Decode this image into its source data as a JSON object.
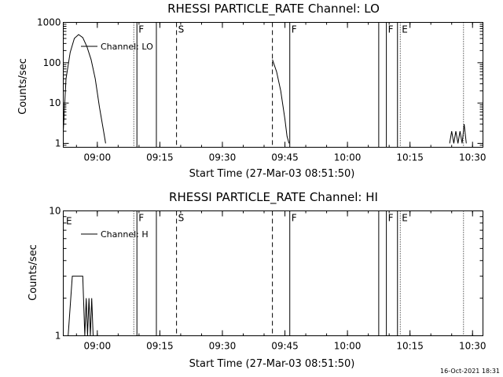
{
  "figure": {
    "timestamp": "16-Oct-2021 18:31"
  },
  "chart_data": [
    {
      "type": "line",
      "title": "RHESSI PARTICLE_RATE Channel: LO",
      "xlabel": "Start Time (27-Mar-03 08:51:50)",
      "ylabel": "Counts/sec",
      "y_scale": "log",
      "ylim": [
        0.8,
        1000
      ],
      "y_ticks": [
        1,
        10,
        100,
        1000
      ],
      "y_tick_labels": [
        "1",
        "10",
        "100",
        "1000"
      ],
      "xlim": [
        "08:51:50",
        "10:32:30"
      ],
      "x_ticks": [
        "09:00",
        "09:15",
        "09:30",
        "09:45",
        "10:00",
        "10:15",
        "10:30"
      ],
      "legend": {
        "position": "top-left",
        "entries": [
          "Channel: LO"
        ]
      },
      "series": [
        {
          "name": "Channel: LO",
          "segments": [
            {
              "x": [
                "08:51:50",
                "08:52:30",
                "08:53:30",
                "08:54:30",
                "08:55:30",
                "08:56:30",
                "08:57:30",
                "08:58:30",
                "08:59:30",
                "09:00:30",
                "09:01:30",
                "09:02:00"
              ],
              "y": [
                2,
                40,
                180,
                400,
                500,
                420,
                250,
                120,
                40,
                8,
                2,
                1
              ]
            },
            {
              "x": [
                "09:42:00",
                "09:43:00",
                "09:44:00",
                "09:45:00",
                "09:45:30",
                "09:46:00"
              ],
              "y": [
                120,
                60,
                20,
                4,
                1.5,
                1
              ]
            },
            {
              "x": [
                "10:24:30",
                "10:25:00",
                "10:25:30",
                "10:26:00",
                "10:26:30",
                "10:27:00",
                "10:27:30",
                "10:28:00",
                "10:28:30"
              ],
              "y": [
                1,
                2,
                1,
                2,
                1,
                2,
                1,
                3,
                1
              ]
            }
          ]
        }
      ],
      "markers": [
        {
          "time": "09:08:45",
          "style": "dotted",
          "label": ""
        },
        {
          "time": "09:09:30",
          "style": "solid",
          "label": "F"
        },
        {
          "time": "09:14:10",
          "style": "solid",
          "label": ""
        },
        {
          "time": "09:19:00",
          "style": "dashed",
          "label": "S"
        },
        {
          "time": "09:42:00",
          "style": "dashed",
          "label": ""
        },
        {
          "time": "09:46:10",
          "style": "solid",
          "label": "F"
        },
        {
          "time": "10:07:30",
          "style": "solid",
          "label": ""
        },
        {
          "time": "10:09:20",
          "style": "solid",
          "label": "F"
        },
        {
          "time": "10:12:00",
          "style": "solid",
          "label": ""
        },
        {
          "time": "10:12:40",
          "style": "dotted",
          "label": "E"
        },
        {
          "time": "10:27:50",
          "style": "dotted",
          "label": ""
        }
      ],
      "extra_labels": []
    },
    {
      "type": "line",
      "title": "RHESSI PARTICLE_RATE Channel: HI",
      "xlabel": "Start Time (27-Mar-03 08:51:50)",
      "ylabel": "Counts/sec",
      "y_scale": "log",
      "ylim": [
        1,
        10
      ],
      "y_ticks": [
        1,
        10
      ],
      "y_tick_labels": [
        "1",
        "10"
      ],
      "xlim": [
        "08:51:50",
        "10:32:30"
      ],
      "x_ticks": [
        "09:00",
        "09:15",
        "09:30",
        "09:45",
        "10:00",
        "10:15",
        "10:30"
      ],
      "legend": {
        "position": "top-left",
        "entries": [
          "Channel: H"
        ]
      },
      "series": [
        {
          "name": "Channel: H",
          "segments": [
            {
              "x": [
                "08:53:00",
                "08:54:00",
                "08:55:00",
                "08:56:30",
                "08:57:00",
                "08:57:20",
                "08:57:40",
                "08:58:00",
                "08:58:20",
                "08:58:40",
                "08:59:00"
              ],
              "y": [
                1,
                3,
                3,
                3,
                1,
                2,
                1,
                2,
                1,
                2,
                1
              ]
            }
          ]
        }
      ],
      "markers": [
        {
          "time": "09:08:45",
          "style": "dotted",
          "label": ""
        },
        {
          "time": "09:09:30",
          "style": "solid",
          "label": "F"
        },
        {
          "time": "09:14:10",
          "style": "solid",
          "label": ""
        },
        {
          "time": "09:19:00",
          "style": "dashed",
          "label": "S"
        },
        {
          "time": "09:42:00",
          "style": "dashed",
          "label": ""
        },
        {
          "time": "09:46:10",
          "style": "solid",
          "label": "F"
        },
        {
          "time": "10:07:30",
          "style": "solid",
          "label": ""
        },
        {
          "time": "10:09:20",
          "style": "solid",
          "label": "F"
        },
        {
          "time": "10:12:00",
          "style": "solid",
          "label": ""
        },
        {
          "time": "10:12:40",
          "style": "dotted",
          "label": "E"
        },
        {
          "time": "10:27:50",
          "style": "dotted",
          "label": ""
        }
      ],
      "extra_labels": [
        {
          "time": "08:52:30",
          "text": "E"
        }
      ]
    }
  ]
}
